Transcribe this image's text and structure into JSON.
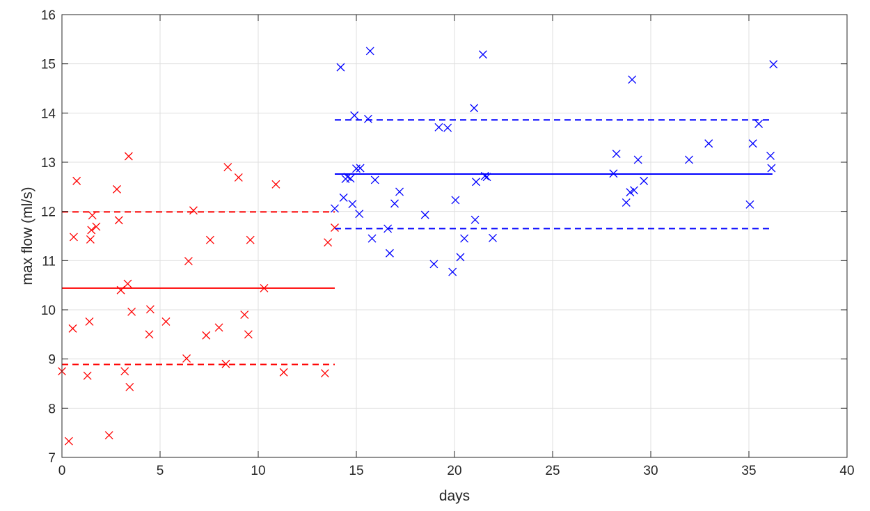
{
  "chart_data": {
    "type": "scatter",
    "title": "",
    "xlabel": "days",
    "ylabel": "max flow (ml/s)",
    "xlim": [
      0,
      40
    ],
    "ylim": [
      7,
      16
    ],
    "xticks": [
      "0",
      "5",
      "10",
      "15",
      "20",
      "25",
      "30",
      "35",
      "40"
    ],
    "yticks": [
      "7",
      "8",
      "9",
      "10",
      "11",
      "12",
      "13",
      "14",
      "15",
      "16"
    ],
    "grid": true,
    "series": [
      {
        "color": "#ff0000",
        "marker": "x",
        "points": [
          [
            0.0,
            8.75
          ],
          [
            0.35,
            7.33
          ],
          [
            0.55,
            9.62
          ],
          [
            0.6,
            11.48
          ],
          [
            0.75,
            12.62
          ],
          [
            1.3,
            8.66
          ],
          [
            1.4,
            9.76
          ],
          [
            1.45,
            11.43
          ],
          [
            1.5,
            11.62
          ],
          [
            1.55,
            11.92
          ],
          [
            1.75,
            11.69
          ],
          [
            2.4,
            7.45
          ],
          [
            2.8,
            12.45
          ],
          [
            2.9,
            11.82
          ],
          [
            3.0,
            10.4
          ],
          [
            3.2,
            8.75
          ],
          [
            3.35,
            10.53
          ],
          [
            3.4,
            13.12
          ],
          [
            3.45,
            8.43
          ],
          [
            3.55,
            9.96
          ],
          [
            4.45,
            9.5
          ],
          [
            4.5,
            10.01
          ],
          [
            5.3,
            9.76
          ],
          [
            6.35,
            9.01
          ],
          [
            6.45,
            10.99
          ],
          [
            6.7,
            12.02
          ],
          [
            7.35,
            9.48
          ],
          [
            7.55,
            11.42
          ],
          [
            8.0,
            9.64
          ],
          [
            8.35,
            8.9
          ],
          [
            8.45,
            12.9
          ],
          [
            9.0,
            12.69
          ],
          [
            9.3,
            9.9
          ],
          [
            9.5,
            9.5
          ],
          [
            9.6,
            11.42
          ],
          [
            10.3,
            10.44
          ],
          [
            10.9,
            12.55
          ],
          [
            11.3,
            8.73
          ],
          [
            13.4,
            8.71
          ],
          [
            13.55,
            11.37
          ],
          [
            13.9,
            11.67
          ]
        ],
        "mean": 10.44,
        "band_low": 8.89,
        "band_high": 11.99,
        "line_x": [
          0.0,
          13.9
        ]
      },
      {
        "color": "#0000ff",
        "marker": "x",
        "points": [
          [
            13.9,
            12.06
          ],
          [
            14.2,
            14.93
          ],
          [
            14.35,
            12.28
          ],
          [
            14.45,
            12.66
          ],
          [
            14.55,
            12.7
          ],
          [
            14.7,
            12.67
          ],
          [
            14.8,
            12.15
          ],
          [
            14.9,
            13.95
          ],
          [
            15.0,
            12.87
          ],
          [
            15.15,
            11.95
          ],
          [
            15.2,
            12.88
          ],
          [
            15.6,
            13.88
          ],
          [
            15.7,
            15.26
          ],
          [
            15.8,
            11.45
          ],
          [
            15.95,
            12.64
          ],
          [
            16.6,
            11.65
          ],
          [
            16.7,
            11.15
          ],
          [
            16.95,
            12.16
          ],
          [
            17.2,
            12.4
          ],
          [
            18.5,
            11.93
          ],
          [
            18.95,
            10.93
          ],
          [
            19.2,
            13.71
          ],
          [
            19.65,
            13.7
          ],
          [
            19.9,
            10.77
          ],
          [
            20.05,
            12.23
          ],
          [
            20.3,
            11.07
          ],
          [
            20.5,
            11.45
          ],
          [
            21.0,
            14.1
          ],
          [
            21.05,
            11.83
          ],
          [
            21.1,
            12.6
          ],
          [
            21.45,
            15.19
          ],
          [
            21.55,
            12.72
          ],
          [
            21.65,
            12.7
          ],
          [
            21.95,
            11.46
          ],
          [
            28.1,
            12.77
          ],
          [
            28.25,
            13.17
          ],
          [
            28.75,
            12.18
          ],
          [
            28.95,
            12.39
          ],
          [
            29.05,
            14.68
          ],
          [
            29.15,
            12.43
          ],
          [
            29.35,
            13.05
          ],
          [
            29.65,
            12.62
          ],
          [
            31.95,
            13.05
          ],
          [
            32.95,
            13.38
          ],
          [
            35.05,
            12.14
          ],
          [
            35.2,
            13.38
          ],
          [
            35.5,
            13.78
          ],
          [
            36.1,
            13.13
          ],
          [
            36.15,
            12.88
          ],
          [
            36.25,
            14.99
          ]
        ],
        "mean": 12.76,
        "band_low": 11.65,
        "band_high": 13.86,
        "line_x": [
          13.9,
          36.2
        ]
      }
    ]
  }
}
